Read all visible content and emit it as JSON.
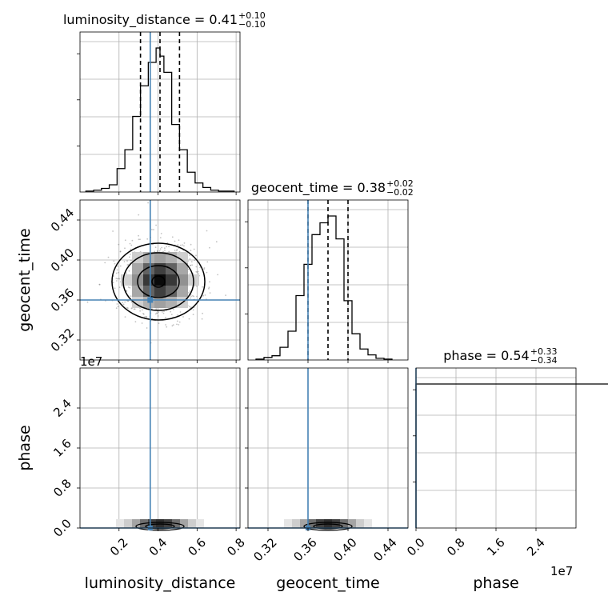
{
  "chart_data": {
    "type": "corner",
    "parameters": [
      "luminosity_distance",
      "geocent_time",
      "phase"
    ],
    "truths": {
      "luminosity_distance": 0.36,
      "geocent_time": 0.36,
      "phase": 0.0
    },
    "titles": [
      {
        "name": "luminosity_distance = 0.41",
        "sup": "+0.10",
        "sub": "−0.10"
      },
      {
        "name": "geocent_time = 0.38",
        "sup": "+0.02",
        "sub": "−0.02"
      },
      {
        "name": "phase = 0.54",
        "sup": "+0.33",
        "sub": "−0.34"
      }
    ],
    "axes": {
      "luminosity_distance": {
        "range": [
          0.0,
          0.82
        ],
        "ticks": [
          0.2,
          0.4,
          0.6,
          0.8
        ],
        "tick_labels": [
          "0.2",
          "0.4",
          "0.6",
          "0.8"
        ]
      },
      "geocent_time": {
        "range": [
          0.3,
          0.46
        ],
        "ticks": [
          0.32,
          0.36,
          0.4,
          0.44
        ],
        "tick_labels": [
          "0.32",
          "0.36",
          "0.40",
          "0.44"
        ]
      },
      "phase": {
        "range": [
          0,
          3.2
        ],
        "ticks": [
          0.0,
          0.8,
          1.6,
          2.4
        ],
        "tick_labels": [
          "0.0",
          "0.8",
          "1.6",
          "2.4"
        ],
        "offset_text": "1e7"
      }
    },
    "hist_luminosity_distance": {
      "bin_edges": [
        0.03,
        0.07,
        0.11,
        0.15,
        0.19,
        0.23,
        0.27,
        0.31,
        0.35,
        0.39,
        0.41,
        0.43,
        0.47,
        0.51,
        0.55,
        0.59,
        0.63,
        0.67,
        0.71,
        0.75,
        0.79
      ],
      "counts": [
        1,
        2,
        4,
        8,
        26,
        47,
        84,
        118,
        144,
        160,
        151,
        133,
        75,
        47,
        22,
        10,
        5,
        2,
        1,
        1
      ],
      "quantiles": [
        0.31,
        0.41,
        0.51
      ]
    },
    "hist_geocent_time": {
      "bin_edges": [
        0.308,
        0.316,
        0.324,
        0.332,
        0.34,
        0.348,
        0.356,
        0.364,
        0.372,
        0.38,
        0.388,
        0.396,
        0.404,
        0.412,
        0.42,
        0.428,
        0.436,
        0.444
      ],
      "counts": [
        1,
        3,
        5,
        15,
        34,
        76,
        113,
        148,
        162,
        170,
        143,
        70,
        31,
        13,
        6,
        2,
        1
      ],
      "quantiles": [
        0.36,
        0.38,
        0.4
      ]
    },
    "hist_phase": {
      "bin_edges": [
        0.0,
        0.1,
        0.32
      ],
      "counts": [
        900,
        900
      ],
      "quantiles": []
    },
    "scatter_center": {
      "luminosity_distance": 0.41,
      "geocent_time": 0.38
    }
  }
}
